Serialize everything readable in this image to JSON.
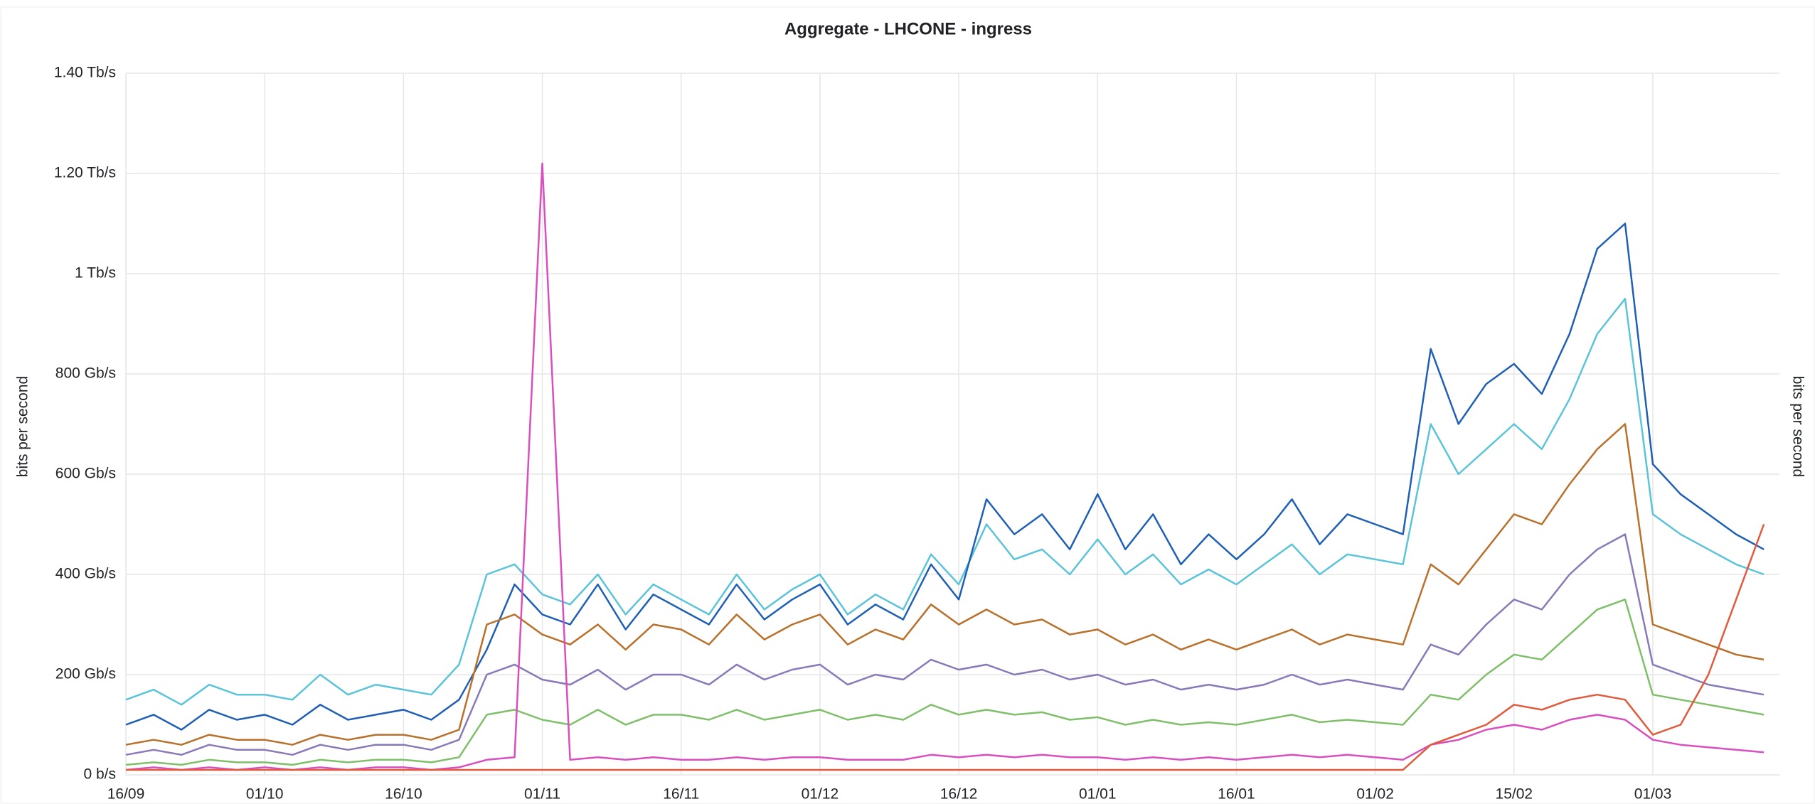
{
  "chart_data": {
    "type": "line",
    "title": "Aggregate - LHCONE - ingress",
    "y_label": "bits per second",
    "y2_label": "bits per second",
    "categories": [
      "16/09",
      null,
      null,
      null,
      null,
      "01/10",
      null,
      null,
      null,
      null,
      "16/10",
      null,
      null,
      null,
      null,
      "01/11",
      null,
      null,
      null,
      null,
      "16/11",
      null,
      null,
      null,
      null,
      "01/12",
      null,
      null,
      null,
      null,
      "16/12",
      null,
      null,
      null,
      null,
      "01/01",
      null,
      null,
      null,
      null,
      "16/01",
      null,
      null,
      null,
      null,
      "01/02",
      null,
      null,
      null,
      null,
      "15/02",
      null,
      null,
      null,
      null,
      "01/03",
      null,
      null,
      null,
      null
    ],
    "series": [
      {
        "color": "#5bc4d9",
        "values": [
          150,
          170,
          140,
          180,
          160,
          160,
          150,
          200,
          160,
          180,
          170,
          160,
          220,
          400,
          420,
          360,
          340,
          400,
          320,
          380,
          350,
          320,
          400,
          330,
          370,
          400,
          320,
          360,
          330,
          440,
          380,
          500,
          430,
          450,
          400,
          470,
          400,
          440,
          380,
          410,
          380,
          420,
          460,
          400,
          440,
          430,
          420,
          700,
          600,
          650,
          700,
          650,
          750,
          880,
          950,
          520,
          480,
          450,
          420,
          400
        ]
      },
      {
        "color": "#1f5fb4",
        "values": [
          100,
          120,
          90,
          130,
          110,
          120,
          100,
          140,
          110,
          120,
          130,
          110,
          150,
          250,
          380,
          320,
          300,
          380,
          290,
          360,
          330,
          300,
          380,
          310,
          350,
          380,
          300,
          340,
          310,
          420,
          350,
          550,
          480,
          520,
          450,
          560,
          450,
          520,
          420,
          480,
          430,
          480,
          550,
          460,
          520,
          500,
          480,
          850,
          700,
          780,
          820,
          760,
          880,
          1050,
          1100,
          620,
          560,
          520,
          480,
          450
        ]
      },
      {
        "color": "#b8702a",
        "values": [
          60,
          70,
          60,
          80,
          70,
          70,
          60,
          80,
          70,
          80,
          80,
          70,
          90,
          300,
          320,
          280,
          260,
          300,
          250,
          300,
          290,
          260,
          320,
          270,
          300,
          320,
          260,
          290,
          270,
          340,
          300,
          330,
          300,
          310,
          280,
          290,
          260,
          280,
          250,
          270,
          250,
          270,
          290,
          260,
          280,
          270,
          260,
          420,
          380,
          450,
          520,
          500,
          580,
          650,
          700,
          300,
          280,
          260,
          240,
          230
        ]
      },
      {
        "color": "#8a79b8",
        "values": [
          40,
          50,
          40,
          60,
          50,
          50,
          40,
          60,
          50,
          60,
          60,
          50,
          70,
          200,
          220,
          190,
          180,
          210,
          170,
          200,
          200,
          180,
          220,
          190,
          210,
          220,
          180,
          200,
          190,
          230,
          210,
          220,
          200,
          210,
          190,
          200,
          180,
          190,
          170,
          180,
          170,
          180,
          200,
          180,
          190,
          180,
          170,
          260,
          240,
          300,
          350,
          330,
          400,
          450,
          480,
          220,
          200,
          180,
          170,
          160
        ]
      },
      {
        "color": "#7fbf6a",
        "values": [
          20,
          25,
          20,
          30,
          25,
          25,
          20,
          30,
          25,
          30,
          30,
          25,
          35,
          120,
          130,
          110,
          100,
          130,
          100,
          120,
          120,
          110,
          130,
          110,
          120,
          130,
          110,
          120,
          110,
          140,
          120,
          130,
          120,
          125,
          110,
          115,
          100,
          110,
          100,
          105,
          100,
          110,
          120,
          105,
          110,
          105,
          100,
          160,
          150,
          200,
          240,
          230,
          280,
          330,
          350,
          160,
          150,
          140,
          130,
          120
        ]
      },
      {
        "color": "#d94fbf",
        "values": [
          10,
          15,
          10,
          15,
          10,
          15,
          10,
          15,
          10,
          15,
          15,
          10,
          15,
          30,
          35,
          1220,
          30,
          35,
          30,
          35,
          30,
          30,
          35,
          30,
          35,
          35,
          30,
          30,
          30,
          40,
          35,
          40,
          35,
          40,
          35,
          35,
          30,
          35,
          30,
          35,
          30,
          35,
          40,
          35,
          40,
          35,
          30,
          60,
          70,
          90,
          100,
          90,
          110,
          120,
          110,
          70,
          60,
          55,
          50,
          45
        ]
      },
      {
        "color": "#e05a3c",
        "values": [
          10,
          10,
          10,
          10,
          10,
          10,
          10,
          10,
          10,
          10,
          10,
          10,
          10,
          10,
          10,
          10,
          10,
          10,
          10,
          10,
          10,
          10,
          10,
          10,
          10,
          10,
          10,
          10,
          10,
          10,
          10,
          10,
          10,
          10,
          10,
          10,
          10,
          10,
          10,
          10,
          10,
          10,
          10,
          10,
          10,
          10,
          10,
          60,
          80,
          100,
          140,
          130,
          150,
          160,
          150,
          80,
          100,
          200,
          350,
          500
        ]
      }
    ],
    "ylim": [
      0,
      1400
    ],
    "yticks": [
      {
        "value": 0,
        "label": "0 b/s"
      },
      {
        "value": 200,
        "label": "200 Gb/s"
      },
      {
        "value": 400,
        "label": "400 Gb/s"
      },
      {
        "value": 600,
        "label": "600 Gb/s"
      },
      {
        "value": 800,
        "label": "800 Gb/s"
      },
      {
        "value": 1000,
        "label": "1 Tb/s"
      },
      {
        "value": 1200,
        "label": "1.20 Tb/s"
      },
      {
        "value": 1400,
        "label": "1.40 Tb/s"
      }
    ],
    "grid": true
  }
}
